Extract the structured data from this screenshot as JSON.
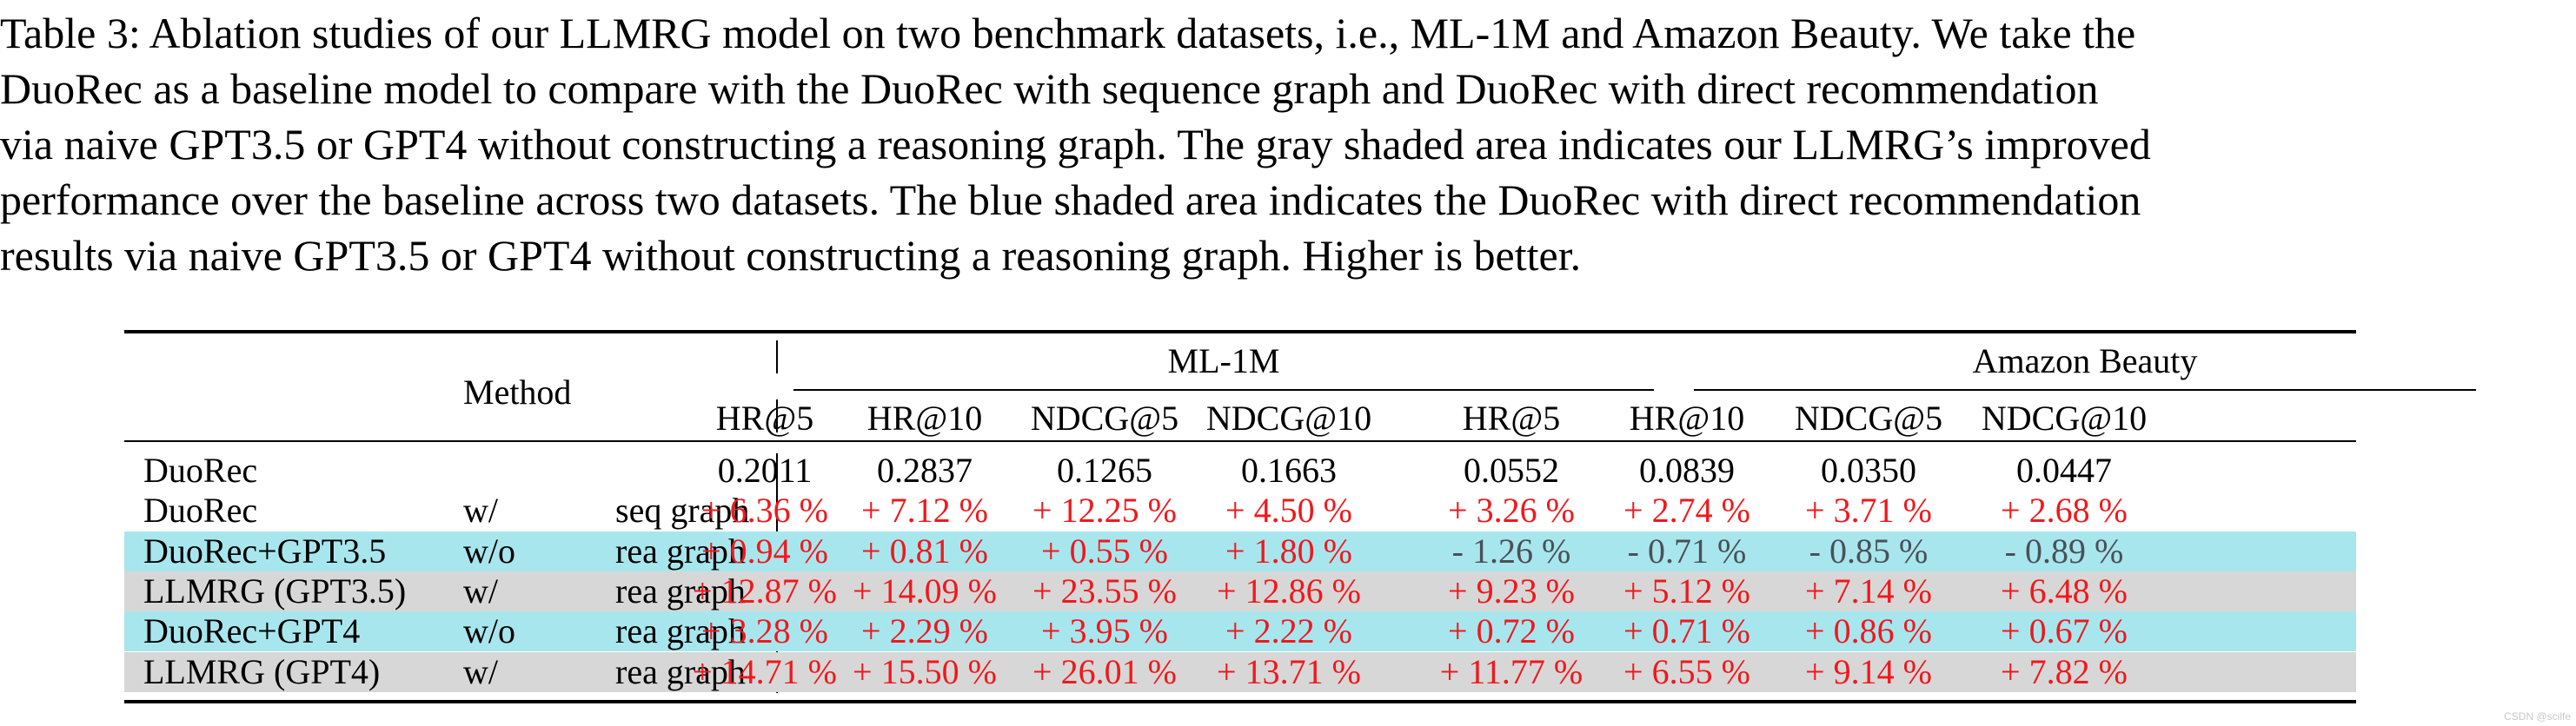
{
  "caption_lines": [
    "Table 3: Ablation studies of our LLMRG model on two benchmark datasets, i.e., ML-1M and Amazon Beauty. We take the",
    "DuoRec as a baseline model to compare with the DuoRec with sequence graph and DuoRec with direct recommendation",
    "via naive GPT3.5 or GPT4 without constructing a reasoning graph. The gray shaded area indicates our LLMRG’s improved",
    "performance over the baseline across two datasets. The blue shaded area indicates the DuoRec with direct recommendation",
    "results via naive GPT3.5 or GPT4 without constructing a reasoning graph. Higher is better."
  ],
  "table": {
    "method_header": "Method",
    "groups": [
      "ML-1M",
      "Amazon Beauty"
    ],
    "metrics": [
      "HR@5",
      "HR@10",
      "NDCG@5",
      "NDCG@10",
      "HR@5",
      "HR@10",
      "NDCG@5",
      "NDCG@10"
    ],
    "rows": [
      {
        "name": "DuoRec",
        "with": "",
        "graph": "",
        "shade": "none",
        "values": [
          "0.2011",
          "0.2837",
          "0.1265",
          "0.1663",
          "0.0552",
          "0.0839",
          "0.0350",
          "0.0447"
        ],
        "tone": [
          "blk",
          "blk",
          "blk",
          "blk",
          "blk",
          "blk",
          "blk",
          "blk"
        ]
      },
      {
        "name": "DuoRec",
        "with": "w/",
        "graph": "seq graph",
        "shade": "none",
        "values": [
          "+ 6.36 %",
          "+ 7.12 %",
          "+ 12.25 %",
          "+ 4.50 %",
          "+ 3.26 %",
          "+ 2.74 %",
          "+ 3.71 %",
          "+ 2.68 %"
        ],
        "tone": [
          "red",
          "red",
          "red",
          "red",
          "red",
          "red",
          "red",
          "red"
        ]
      },
      {
        "name": "DuoRec+GPT3.5",
        "with": "w/o",
        "graph": "rea graph",
        "shade": "blue",
        "values": [
          "+ 0.94 %",
          "+ 0.81 %",
          "+ 0.55 %",
          "+ 1.80 %",
          "- 1.26 %",
          "- 0.71 %",
          "- 0.85 %",
          "- 0.89 %"
        ],
        "tone": [
          "red",
          "red",
          "red",
          "red",
          "dim",
          "dim",
          "dim",
          "dim"
        ]
      },
      {
        "name": "LLMRG (GPT3.5)",
        "with": "w/",
        "graph": "rea graph",
        "shade": "gray",
        "values": [
          "+ 12.87 %",
          "+ 14.09 %",
          "+ 23.55 %",
          "+ 12.86 %",
          "+ 9.23 %",
          "+ 5.12 %",
          "+ 7.14 %",
          "+ 6.48 %"
        ],
        "tone": [
          "red",
          "red",
          "red",
          "red",
          "red",
          "red",
          "red",
          "red"
        ]
      },
      {
        "name": "DuoRec+GPT4",
        "with": "w/o",
        "graph": "rea graph",
        "shade": "blue",
        "values": [
          "+ 3.28 %",
          "+ 2.29 %",
          "+ 3.95 %",
          "+ 2.22 %",
          "+ 0.72 %",
          "+ 0.71 %",
          "+ 0.86 %",
          "+ 0.67 %"
        ],
        "tone": [
          "red",
          "red",
          "red",
          "red",
          "red",
          "red",
          "red",
          "red"
        ]
      },
      {
        "name": "LLMRG (GPT4)",
        "with": "w/",
        "graph": "rea graph",
        "shade": "gray",
        "values": [
          "+ 14.71 %",
          "+ 15.50 %",
          "+ 26.01 %",
          "+ 13.71 %",
          "+ 11.77 %",
          "+ 6.55 %",
          "+ 9.14 %",
          "+ 7.82 %"
        ],
        "tone": [
          "red",
          "red",
          "red",
          "red",
          "red",
          "red",
          "red",
          "red"
        ]
      }
    ],
    "colors": {
      "red": "#f0181c",
      "blue_shade": "#a8e6ee",
      "gray_shade": "#d7d7d7",
      "neg": "#4a5057"
    }
  },
  "watermark": "CSDN @scilfe"
}
